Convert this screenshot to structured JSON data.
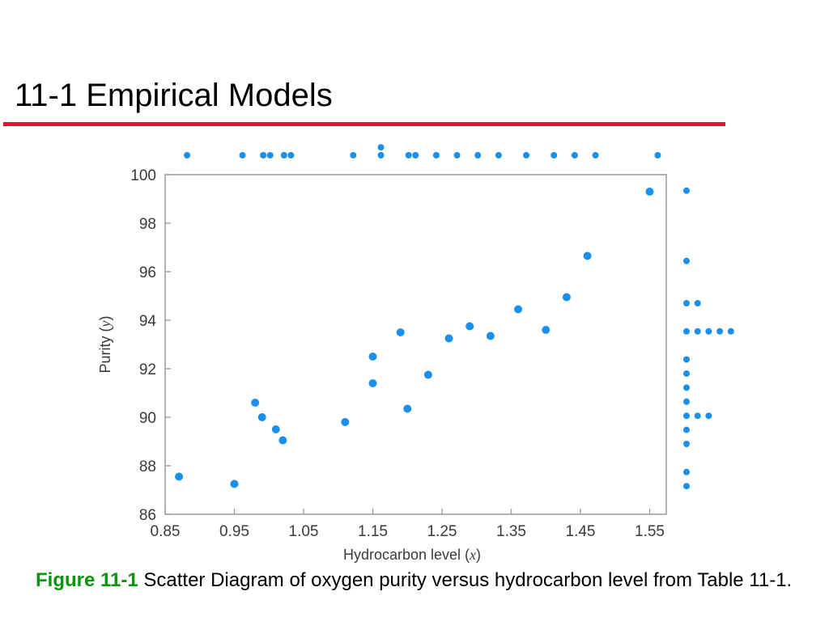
{
  "slide": {
    "title": "11-1 Empirical Models",
    "colors": {
      "rule": "#e8102e",
      "caption_label": "#08950c",
      "points": "#1a8fec"
    }
  },
  "caption": {
    "label": "Figure 11-1",
    "text": " Scatter Diagram of oxygen purity versus hydrocarbon level from Table 11-1."
  },
  "chart_data": {
    "type": "scatter",
    "title": "",
    "xlabel": "Hydrocarbon level",
    "xvar": "x",
    "ylabel": "Purity",
    "yvar": "y",
    "xlim": [
      0.85,
      1.56
    ],
    "ylim": [
      86,
      100
    ],
    "xticks": [
      "0.85",
      "0.95",
      "1.05",
      "1.15",
      "1.25",
      "1.35",
      "1.45",
      "1.55"
    ],
    "yticks": [
      "86",
      "88",
      "90",
      "92",
      "94",
      "96",
      "98",
      "100"
    ],
    "grid": false,
    "marginal_dot_plots": true,
    "point_color": "#1a8fec",
    "points": [
      {
        "x": 0.87,
        "y": 87.55
      },
      {
        "x": 0.95,
        "y": 87.25
      },
      {
        "x": 0.98,
        "y": 90.6
      },
      {
        "x": 0.99,
        "y": 90.0
      },
      {
        "x": 1.01,
        "y": 89.5
      },
      {
        "x": 1.02,
        "y": 89.05
      },
      {
        "x": 1.11,
        "y": 89.8
      },
      {
        "x": 1.15,
        "y": 91.4
      },
      {
        "x": 1.15,
        "y": 92.5
      },
      {
        "x": 1.19,
        "y": 93.5
      },
      {
        "x": 1.2,
        "y": 90.35
      },
      {
        "x": 1.23,
        "y": 91.75
      },
      {
        "x": 1.26,
        "y": 93.25
      },
      {
        "x": 1.29,
        "y": 93.75
      },
      {
        "x": 1.32,
        "y": 93.35
      },
      {
        "x": 1.36,
        "y": 94.45
      },
      {
        "x": 1.4,
        "y": 93.6
      },
      {
        "x": 1.43,
        "y": 94.95
      },
      {
        "x": 1.46,
        "y": 96.65
      },
      {
        "x": 1.55,
        "y": 99.3
      }
    ]
  }
}
